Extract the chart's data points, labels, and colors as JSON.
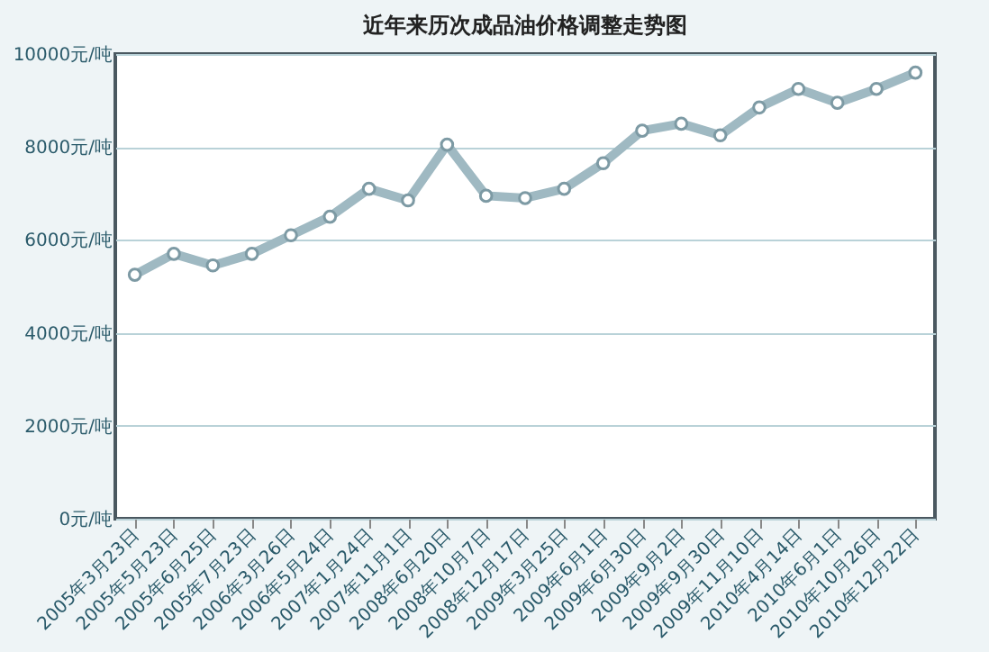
{
  "chart_data": {
    "type": "line",
    "title": "近年来历次成品油价格调整走势图",
    "categories": [
      "2005年3月23日",
      "2005年5月23日",
      "2005年6月25日",
      "2005年7月23日",
      "2006年3月26日",
      "2006年5月24日",
      "2007年1月24日",
      "2007年11月1日",
      "2008年6月20日",
      "2008年10月7日",
      "2008年12月17日",
      "2009年3月25日",
      "2009年6月1日",
      "2009年6月30日",
      "2009年9月2日",
      "2009年9月30日",
      "2009年11月10日",
      "2010年4月14日",
      "2010年6月1日",
      "2010年10月26日",
      "2010年12月22日"
    ],
    "series": [
      {
        "color": "#9fb9c2",
        "values": [
          5250,
          5700,
          5450,
          5700,
          6100,
          6500,
          7100,
          6850,
          8050,
          6950,
          6900,
          7100,
          7650,
          8350,
          8500,
          8250,
          8850,
          9250,
          8950,
          9250,
          9600
        ]
      }
    ],
    "ylim": [
      0,
      10000
    ],
    "yticks": [
      {
        "value": 0,
        "label": "0元/吨"
      },
      {
        "value": 2000,
        "label": "2000元/吨"
      },
      {
        "value": 4000,
        "label": "4000元/吨"
      },
      {
        "value": 6000,
        "label": "6000元/吨"
      },
      {
        "value": 8000,
        "label": "8000元/吨"
      },
      {
        "value": 10000,
        "label": "10000元/吨"
      }
    ],
    "grid": "y",
    "marker": "circle",
    "line_style": "solid"
  }
}
